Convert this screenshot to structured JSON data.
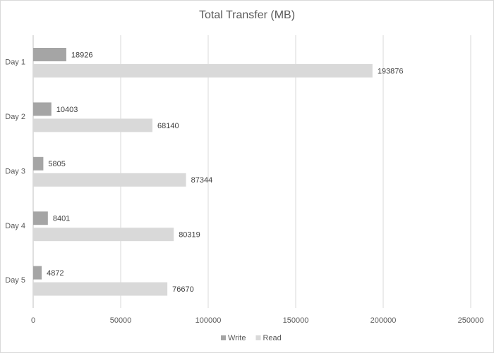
{
  "chart_data": {
    "type": "bar",
    "orientation": "horizontal",
    "title": "Total Transfer (MB)",
    "categories": [
      "Day 1",
      "Day 2",
      "Day 3",
      "Day 4",
      "Day 5"
    ],
    "series": [
      {
        "name": "Write",
        "color": "#a5a5a5",
        "values": [
          18926,
          10403,
          5805,
          8401,
          4872
        ]
      },
      {
        "name": "Read",
        "color": "#d9d9d9",
        "values": [
          193876,
          68140,
          87344,
          80319,
          76670
        ]
      }
    ],
    "xlim": [
      0,
      250000
    ],
    "xticks": [
      0,
      50000,
      100000,
      150000,
      200000,
      250000
    ],
    "grid": true,
    "legend": "bottom"
  }
}
